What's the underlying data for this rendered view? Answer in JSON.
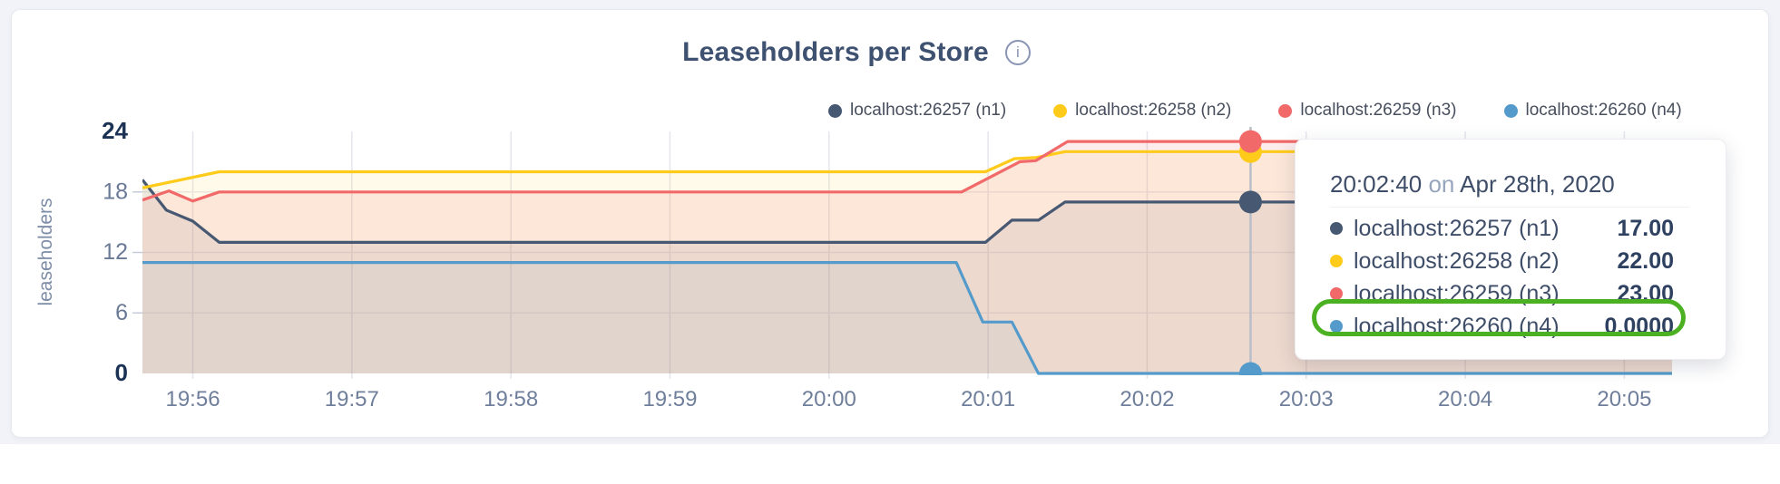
{
  "page": {
    "background": "#f2f3f8"
  },
  "header": {
    "title": "Leaseholders per Store",
    "info_icon": "i"
  },
  "chart_data": {
    "type": "area",
    "title": "Leaseholders per Store",
    "ylabel": "leaseholders",
    "xlabel": "",
    "ylim": [
      0,
      24
    ],
    "t_domain": [
      0,
      577
    ],
    "grid": true,
    "legend_position": "top",
    "yticks": [
      {
        "value": 0,
        "label": "0",
        "bold": true,
        "grid": false
      },
      {
        "value": 6,
        "label": "6",
        "bold": false,
        "grid": true
      },
      {
        "value": 12,
        "label": "12",
        "bold": false,
        "grid": true
      },
      {
        "value": 18,
        "label": "18",
        "bold": false,
        "grid": true
      },
      {
        "value": 24,
        "label": "24",
        "bold": true,
        "grid": false
      }
    ],
    "xticks": [
      {
        "t": 19,
        "label": "19:56"
      },
      {
        "t": 79,
        "label": "19:57"
      },
      {
        "t": 139,
        "label": "19:58"
      },
      {
        "t": 199,
        "label": "19:59"
      },
      {
        "t": 259,
        "label": "20:00"
      },
      {
        "t": 319,
        "label": "20:01"
      },
      {
        "t": 379,
        "label": "20:02"
      },
      {
        "t": 439,
        "label": "20:03"
      },
      {
        "t": 499,
        "label": "20:04"
      },
      {
        "t": 559,
        "label": "20:05"
      }
    ],
    "series": [
      {
        "name": "localhost:26257 (n1)",
        "color": "#475872",
        "fill_alpha": 0.1,
        "points": [
          [
            0,
            19.2
          ],
          [
            9,
            16.2
          ],
          [
            19,
            15.1
          ],
          [
            29,
            13
          ],
          [
            318,
            13
          ],
          [
            328,
            15.2
          ],
          [
            338,
            15.2
          ],
          [
            348,
            17
          ],
          [
            577,
            17
          ]
        ]
      },
      {
        "name": "localhost:26258 (n2)",
        "color": "#FFCB1A",
        "fill_alpha": 0.09,
        "points": [
          [
            0,
            18.4
          ],
          [
            29,
            20
          ],
          [
            318,
            20
          ],
          [
            329,
            21.3
          ],
          [
            337,
            21.4
          ],
          [
            348,
            22
          ],
          [
            577,
            22
          ]
        ]
      },
      {
        "name": "localhost:26259 (n3)",
        "color": "#F16969",
        "fill_alpha": 0.13,
        "points": [
          [
            0,
            17.2
          ],
          [
            10,
            18.1
          ],
          [
            19,
            17.1
          ],
          [
            29,
            18
          ],
          [
            309,
            18
          ],
          [
            331,
            21
          ],
          [
            337,
            21.1
          ],
          [
            349,
            23
          ],
          [
            577,
            23
          ]
        ]
      },
      {
        "name": "localhost:26260 (n4)",
        "color": "#549BCC",
        "fill_alpha": 0.08,
        "points": [
          [
            0,
            11
          ],
          [
            307,
            11
          ],
          [
            317,
            5.1
          ],
          [
            328,
            5.1
          ],
          [
            338,
            0
          ],
          [
            577,
            0
          ]
        ]
      }
    ]
  },
  "tooltip": {
    "t": 418,
    "time": "20:02:40",
    "connector": "on",
    "date": "Apr 28th, 2020",
    "rows": [
      {
        "name": "localhost:26257 (n1)",
        "value": "17.00"
      },
      {
        "name": "localhost:26258 (n2)",
        "value": "22.00"
      },
      {
        "name": "localhost:26259 (n3)",
        "value": "23.00"
      },
      {
        "name": "localhost:26260 (n4)",
        "value": "0.0000"
      }
    ],
    "highlight_row_index": 3,
    "highlight_color": "#4CB122"
  }
}
